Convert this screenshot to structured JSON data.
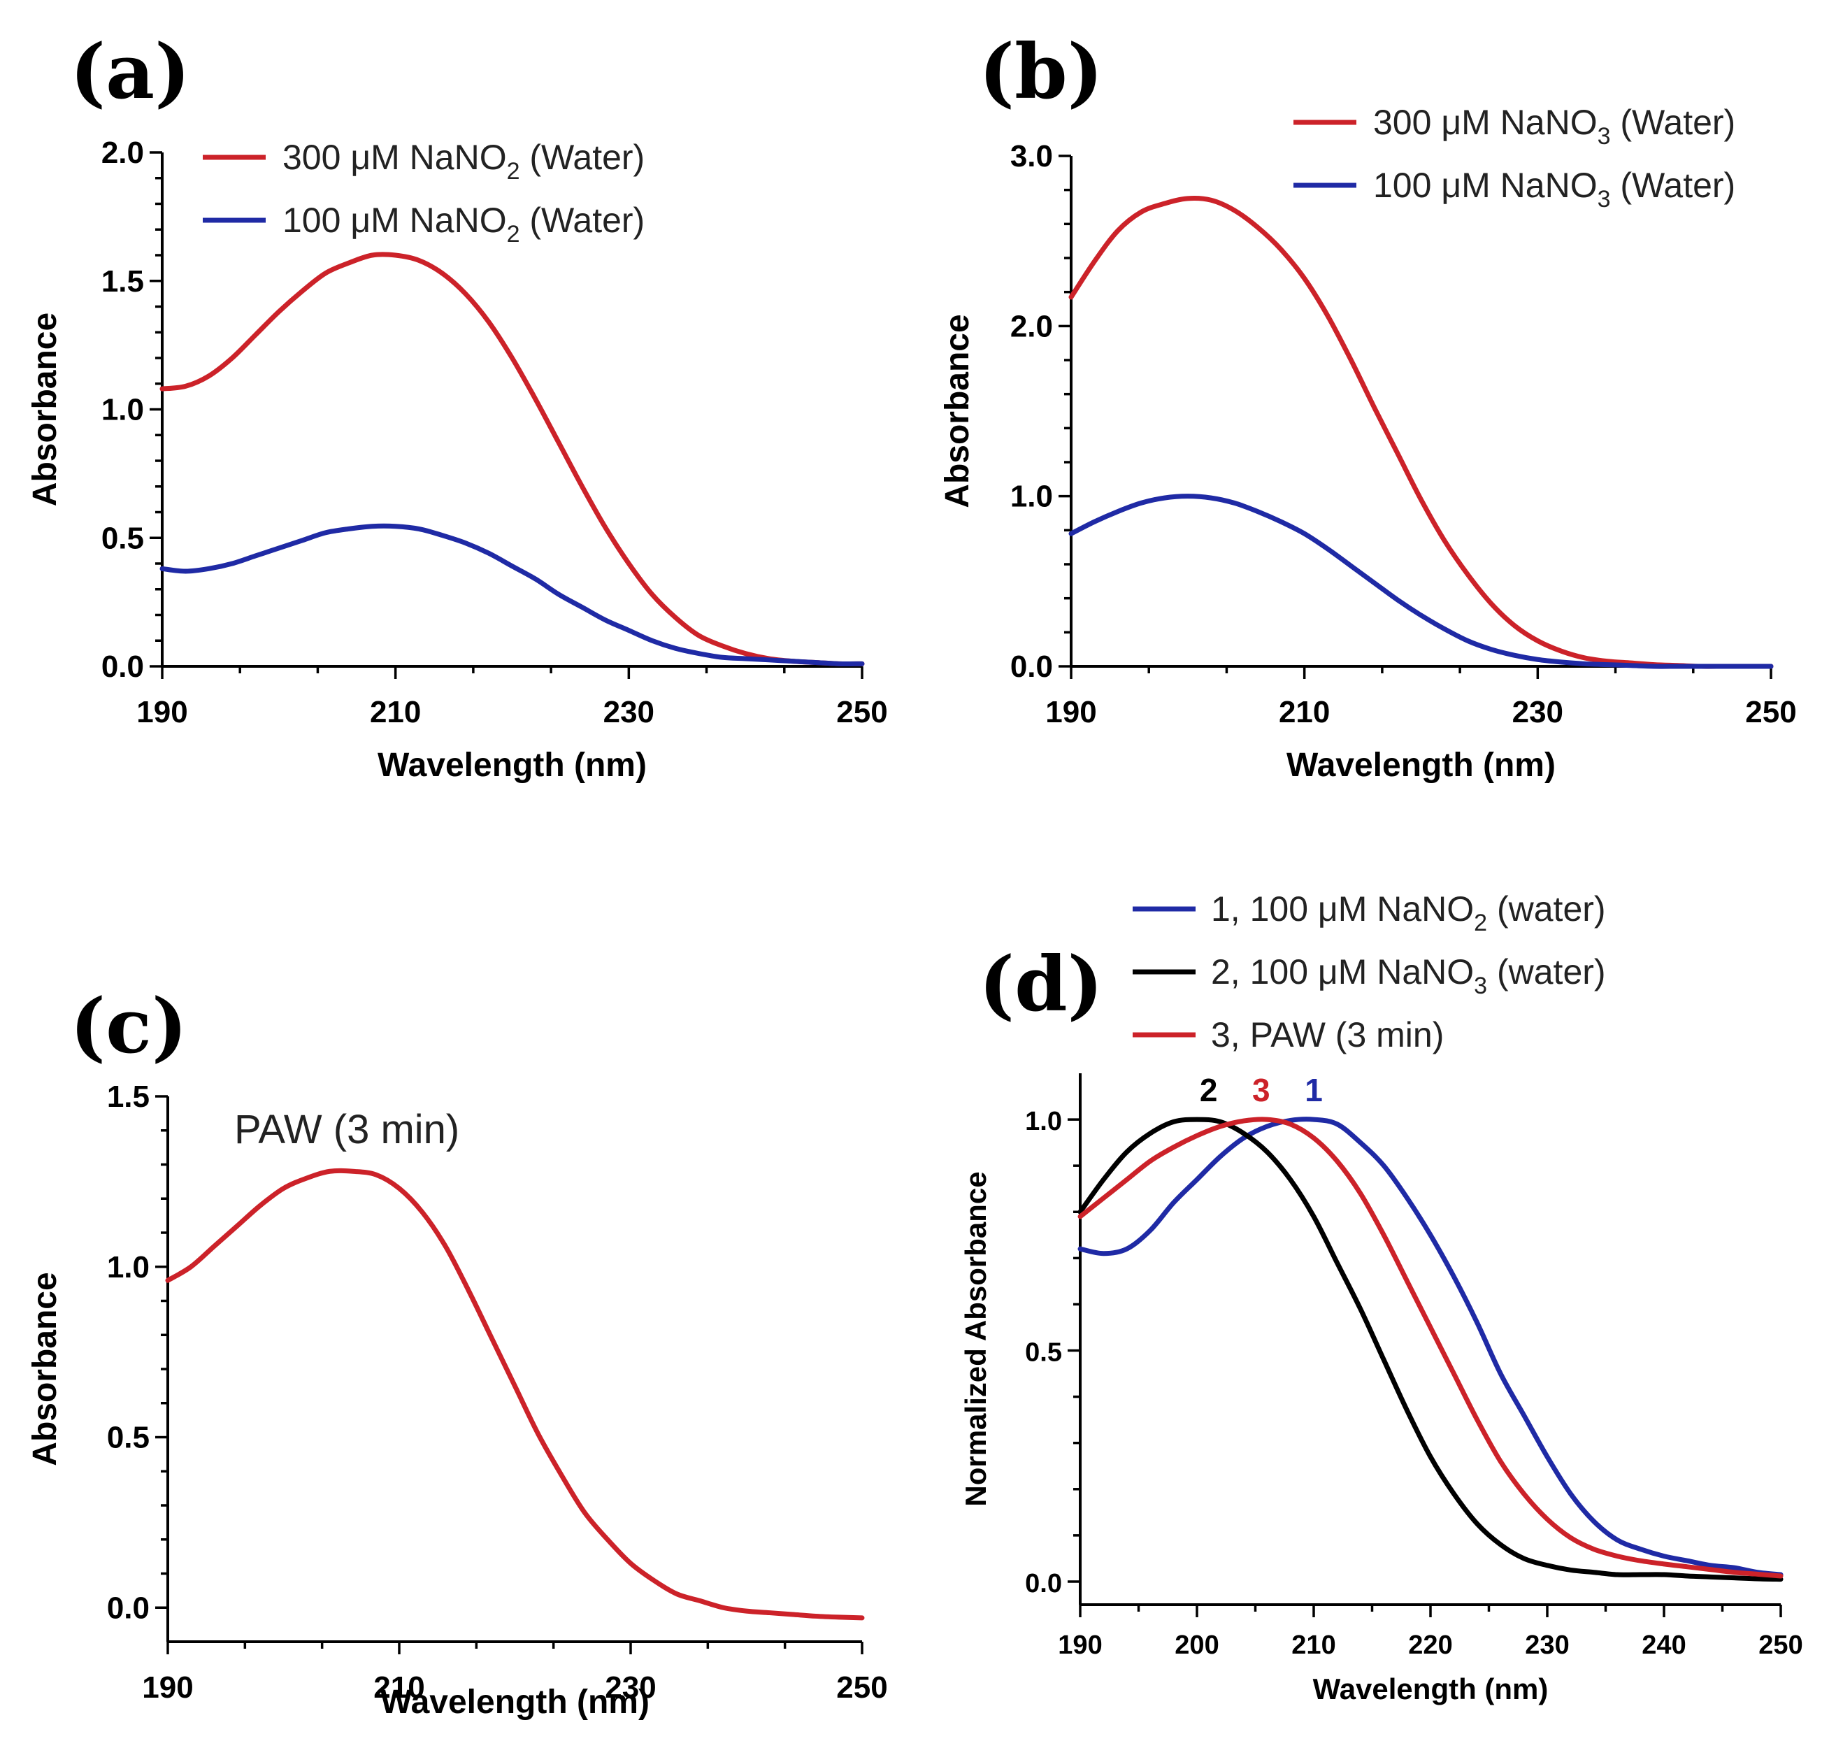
{
  "colors": {
    "red": "#cc2229",
    "blue": "#1f2aa5",
    "black": "#000000"
  },
  "chart_data": [
    {
      "panel": "(a)",
      "type": "line",
      "xlabel": "Wavelength (nm)",
      "ylabel": "Absorbance",
      "xlim": [
        190,
        250
      ],
      "ylim": [
        0.0,
        2.0
      ],
      "xticks": [
        "190",
        "210",
        "230",
        "250"
      ],
      "yticks": [
        "0.0",
        "0.5",
        "1.0",
        "1.5",
        "2.0"
      ],
      "legend": [
        {
          "pre": "300 μM NaNO",
          "sub": "2",
          "post": " (Water)",
          "color": "#cc2229"
        },
        {
          "pre": "100 μM NaNO",
          "sub": "2",
          "post": " (Water)",
          "color": "#1f2aa5"
        }
      ],
      "series": [
        {
          "name": "300 μM NaNO2 (Water)",
          "color": "#cc2229",
          "x": [
            190,
            192,
            194,
            196,
            198,
            200,
            202,
            204,
            206,
            208,
            210,
            212,
            214,
            216,
            218,
            220,
            222,
            224,
            226,
            228,
            230,
            232,
            234,
            236,
            238,
            240,
            242,
            244,
            246,
            248,
            250
          ],
          "y": [
            1.08,
            1.09,
            1.13,
            1.2,
            1.29,
            1.38,
            1.46,
            1.53,
            1.57,
            1.6,
            1.6,
            1.58,
            1.53,
            1.45,
            1.34,
            1.2,
            1.04,
            0.87,
            0.7,
            0.54,
            0.4,
            0.28,
            0.19,
            0.12,
            0.08,
            0.05,
            0.03,
            0.02,
            0.015,
            0.01,
            0.01
          ]
        },
        {
          "name": "100 μM NaNO2 (Water)",
          "color": "#1f2aa5",
          "x": [
            190,
            192,
            194,
            196,
            198,
            200,
            202,
            204,
            206,
            208,
            210,
            212,
            214,
            216,
            218,
            220,
            222,
            224,
            226,
            228,
            230,
            232,
            234,
            236,
            238,
            240,
            242,
            244,
            246,
            248,
            250
          ],
          "y": [
            0.38,
            0.37,
            0.38,
            0.4,
            0.43,
            0.46,
            0.49,
            0.52,
            0.535,
            0.545,
            0.545,
            0.535,
            0.51,
            0.48,
            0.44,
            0.39,
            0.34,
            0.28,
            0.23,
            0.18,
            0.14,
            0.1,
            0.07,
            0.05,
            0.035,
            0.03,
            0.025,
            0.02,
            0.015,
            0.01,
            0.01
          ]
        }
      ]
    },
    {
      "panel": "(b)",
      "type": "line",
      "xlabel": "Wavelength (nm)",
      "ylabel": "Absorbance",
      "xlim": [
        190,
        250
      ],
      "ylim": [
        0.0,
        3.0
      ],
      "xticks": [
        "190",
        "210",
        "230",
        "250"
      ],
      "yticks": [
        "0.0",
        "1.0",
        "2.0",
        "3.0"
      ],
      "legend": [
        {
          "pre": "300 μM NaNO",
          "sub": "3",
          "post": " (Water)",
          "color": "#cc2229"
        },
        {
          "pre": "100 μM NaNO",
          "sub": "3",
          "post": " (Water)",
          "color": "#1f2aa5"
        }
      ],
      "series": [
        {
          "name": "300 μM NaNO3 (Water)",
          "color": "#cc2229",
          "x": [
            190,
            192,
            194,
            196,
            198,
            200,
            202,
            204,
            206,
            208,
            210,
            212,
            214,
            216,
            218,
            220,
            222,
            224,
            226,
            228,
            230,
            232,
            234,
            236,
            238,
            240,
            242,
            244,
            246,
            248,
            250
          ],
          "y": [
            2.17,
            2.38,
            2.56,
            2.67,
            2.72,
            2.75,
            2.74,
            2.68,
            2.58,
            2.45,
            2.28,
            2.06,
            1.8,
            1.52,
            1.25,
            0.98,
            0.74,
            0.54,
            0.37,
            0.24,
            0.15,
            0.09,
            0.05,
            0.03,
            0.02,
            0.01,
            0.005,
            0.0,
            0.0,
            0.0,
            0.0
          ]
        },
        {
          "name": "100 μM NaNO3 (Water)",
          "color": "#1f2aa5",
          "x": [
            190,
            192,
            194,
            196,
            198,
            200,
            202,
            204,
            206,
            208,
            210,
            212,
            214,
            216,
            218,
            220,
            222,
            224,
            226,
            228,
            230,
            232,
            234,
            236,
            238,
            240,
            242,
            244,
            246,
            248,
            250
          ],
          "y": [
            0.78,
            0.85,
            0.91,
            0.96,
            0.99,
            1.0,
            0.99,
            0.96,
            0.91,
            0.85,
            0.78,
            0.69,
            0.59,
            0.49,
            0.39,
            0.3,
            0.22,
            0.15,
            0.1,
            0.065,
            0.04,
            0.025,
            0.015,
            0.01,
            0.005,
            0.0,
            0.0,
            0.0,
            0.0,
            0.0,
            0.0
          ]
        }
      ]
    },
    {
      "panel": "(c)",
      "type": "line",
      "xlabel": "Wavelength (nm)",
      "ylabel": "Absorbance",
      "xlim": [
        190,
        250
      ],
      "ylim": [
        -0.1,
        1.5
      ],
      "xticks": [
        "190",
        "210",
        "230",
        "250"
      ],
      "yticks": [
        "0.0",
        "0.5",
        "1.0",
        "1.5"
      ],
      "annotation": "PAW (3 min)",
      "series": [
        {
          "name": "PAW (3 min)",
          "color": "#cc2229",
          "x": [
            190,
            192,
            194,
            196,
            198,
            200,
            202,
            204,
            206,
            208,
            210,
            212,
            214,
            216,
            218,
            220,
            222,
            224,
            226,
            228,
            230,
            232,
            234,
            236,
            238,
            240,
            242,
            244,
            246,
            248,
            250
          ],
          "y": [
            0.96,
            1.0,
            1.06,
            1.12,
            1.18,
            1.23,
            1.26,
            1.28,
            1.28,
            1.27,
            1.23,
            1.16,
            1.06,
            0.93,
            0.79,
            0.65,
            0.51,
            0.39,
            0.28,
            0.2,
            0.13,
            0.08,
            0.04,
            0.02,
            0.0,
            -0.01,
            -0.015,
            -0.02,
            -0.025,
            -0.028,
            -0.03
          ]
        }
      ]
    },
    {
      "panel": "(d)",
      "type": "line",
      "xlabel": "Wavelength (nm)",
      "ylabel": "Normalized Absorbance",
      "xlim": [
        190,
        250
      ],
      "ylim": [
        -0.05,
        1.1
      ],
      "xticks": [
        "190",
        "200",
        "210",
        "220",
        "230",
        "240",
        "250"
      ],
      "yticks": [
        "0.0",
        "0.5",
        "1.0"
      ],
      "legend": [
        {
          "pre": "1, 100 μM NaNO",
          "sub": "2",
          "post": " (water)",
          "color": "#1f2aa5"
        },
        {
          "pre": "2, 100 μM NaNO",
          "sub": "3",
          "post": " (water)",
          "color": "#000000"
        },
        {
          "pre": "3, PAW (3 min)",
          "sub": "",
          "post": "",
          "color": "#cc2229"
        }
      ],
      "peak_labels": [
        {
          "text": "2",
          "x": 201,
          "color": "#000000"
        },
        {
          "text": "3",
          "x": 205.5,
          "color": "#cc2229"
        },
        {
          "text": "1",
          "x": 210,
          "color": "#1f2aa5"
        }
      ],
      "series": [
        {
          "name": "1, 100 μM NaNO2 (water)",
          "color": "#1f2aa5",
          "x": [
            190,
            192,
            194,
            196,
            198,
            200,
            202,
            204,
            206,
            208,
            210,
            212,
            214,
            216,
            218,
            220,
            222,
            224,
            226,
            228,
            230,
            232,
            234,
            236,
            238,
            240,
            242,
            244,
            246,
            248,
            250
          ],
          "y": [
            0.72,
            0.71,
            0.72,
            0.76,
            0.82,
            0.87,
            0.92,
            0.96,
            0.985,
            0.998,
            1.0,
            0.99,
            0.95,
            0.9,
            0.83,
            0.75,
            0.66,
            0.56,
            0.45,
            0.36,
            0.27,
            0.19,
            0.13,
            0.09,
            0.07,
            0.055,
            0.045,
            0.035,
            0.03,
            0.02,
            0.015
          ]
        },
        {
          "name": "2, 100 μM NaNO3 (water)",
          "color": "#000000",
          "x": [
            190,
            192,
            194,
            196,
            198,
            200,
            202,
            204,
            206,
            208,
            210,
            212,
            214,
            216,
            218,
            220,
            222,
            224,
            226,
            228,
            230,
            232,
            234,
            236,
            238,
            240,
            242,
            244,
            246,
            248,
            250
          ],
          "y": [
            0.8,
            0.87,
            0.93,
            0.97,
            0.995,
            1.0,
            0.995,
            0.97,
            0.93,
            0.87,
            0.79,
            0.69,
            0.59,
            0.48,
            0.37,
            0.27,
            0.19,
            0.125,
            0.08,
            0.05,
            0.035,
            0.025,
            0.02,
            0.015,
            0.015,
            0.015,
            0.012,
            0.01,
            0.008,
            0.006,
            0.005
          ]
        },
        {
          "name": "3, PAW (3 min)",
          "color": "#cc2229",
          "x": [
            190,
            192,
            194,
            196,
            198,
            200,
            202,
            204,
            206,
            208,
            210,
            212,
            214,
            216,
            218,
            220,
            222,
            224,
            226,
            228,
            230,
            232,
            234,
            236,
            238,
            240,
            242,
            244,
            246,
            248,
            250
          ],
          "y": [
            0.79,
            0.83,
            0.87,
            0.91,
            0.94,
            0.965,
            0.985,
            0.997,
            1.0,
            0.99,
            0.96,
            0.91,
            0.84,
            0.75,
            0.65,
            0.55,
            0.45,
            0.35,
            0.26,
            0.19,
            0.135,
            0.095,
            0.07,
            0.055,
            0.045,
            0.038,
            0.032,
            0.026,
            0.02,
            0.016,
            0.012
          ]
        }
      ]
    }
  ]
}
